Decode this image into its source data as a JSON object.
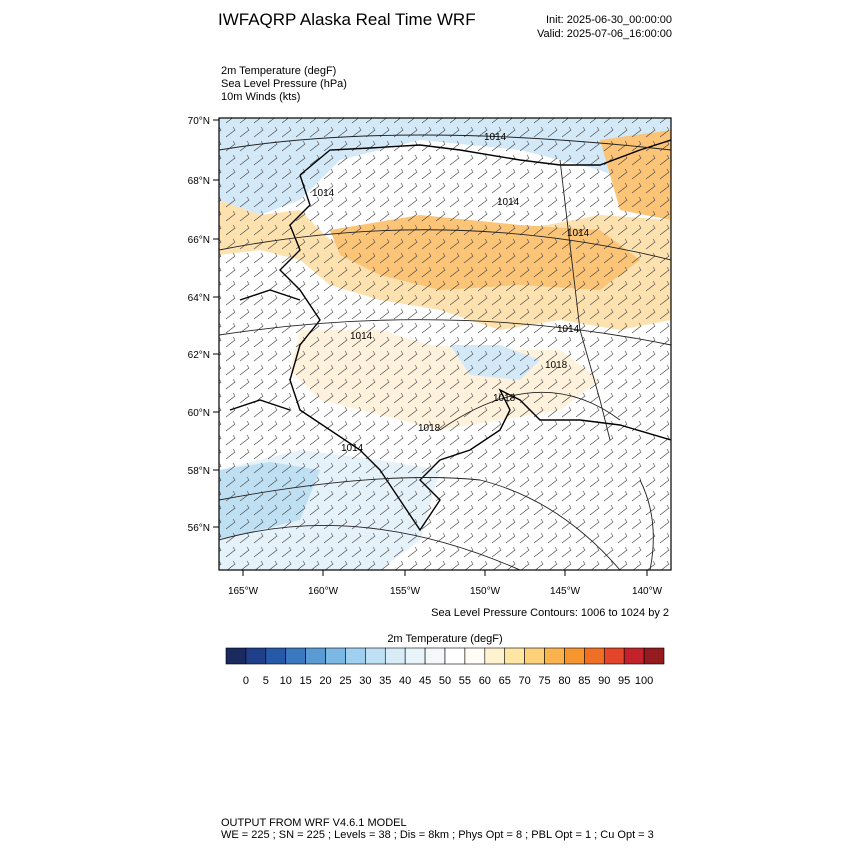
{
  "header": {
    "title": "IWFAQRP Alaska Real Time WRF",
    "init": "Init: 2025-06-30_00:00:00",
    "valid": "Valid: 2025-07-06_16:00:00"
  },
  "fields": [
    "2m Temperature   (degF)",
    "Sea Level Pressure   (hPa)",
    "10m Winds   (kts)"
  ],
  "map": {
    "lat_labels": [
      "70°N",
      "68°N",
      "66°N",
      "64°N",
      "62°N",
      "60°N",
      "58°N",
      "56°N"
    ],
    "lon_labels": [
      "165°W",
      "160°W",
      "155°W",
      "150°W",
      "145°W",
      "140°W"
    ],
    "contour_labels": [
      "1014",
      "1014",
      "1014",
      "1014",
      "1014",
      "1014",
      "1014",
      "1018",
      "1018",
      "1018"
    ],
    "contour_note": "Sea Level Pressure Contours: 1006 to 1024 by 2"
  },
  "colorbar": {
    "title": "2m Temperature  (degF)",
    "colors": [
      "#1a2a5e",
      "#1f3f8a",
      "#2659a8",
      "#3a78c0",
      "#5a9bd4",
      "#7cb8e4",
      "#9fd0f0",
      "#bfe1f5",
      "#d8ecf8",
      "#e8f3fa",
      "#f4f8fb",
      "#ffffff",
      "#fffdf5",
      "#fff3cf",
      "#ffe6a3",
      "#fdd17a",
      "#fbb34f",
      "#f7952e",
      "#ef7024",
      "#e2452a",
      "#c4222a",
      "#951b1e"
    ],
    "labels": [
      0,
      5,
      10,
      15,
      20,
      25,
      30,
      35,
      40,
      45,
      50,
      55,
      60,
      65,
      70,
      75,
      80,
      85,
      90,
      95,
      100
    ]
  },
  "footer": [
    "OUTPUT FROM WRF V4.6.1 MODEL",
    "WE = 225 ; SN = 225 ; Levels = 38 ; Dis = 8km ; Phys Opt = 8 ; PBL Opt = 1 ; Cu Opt = 3"
  ]
}
